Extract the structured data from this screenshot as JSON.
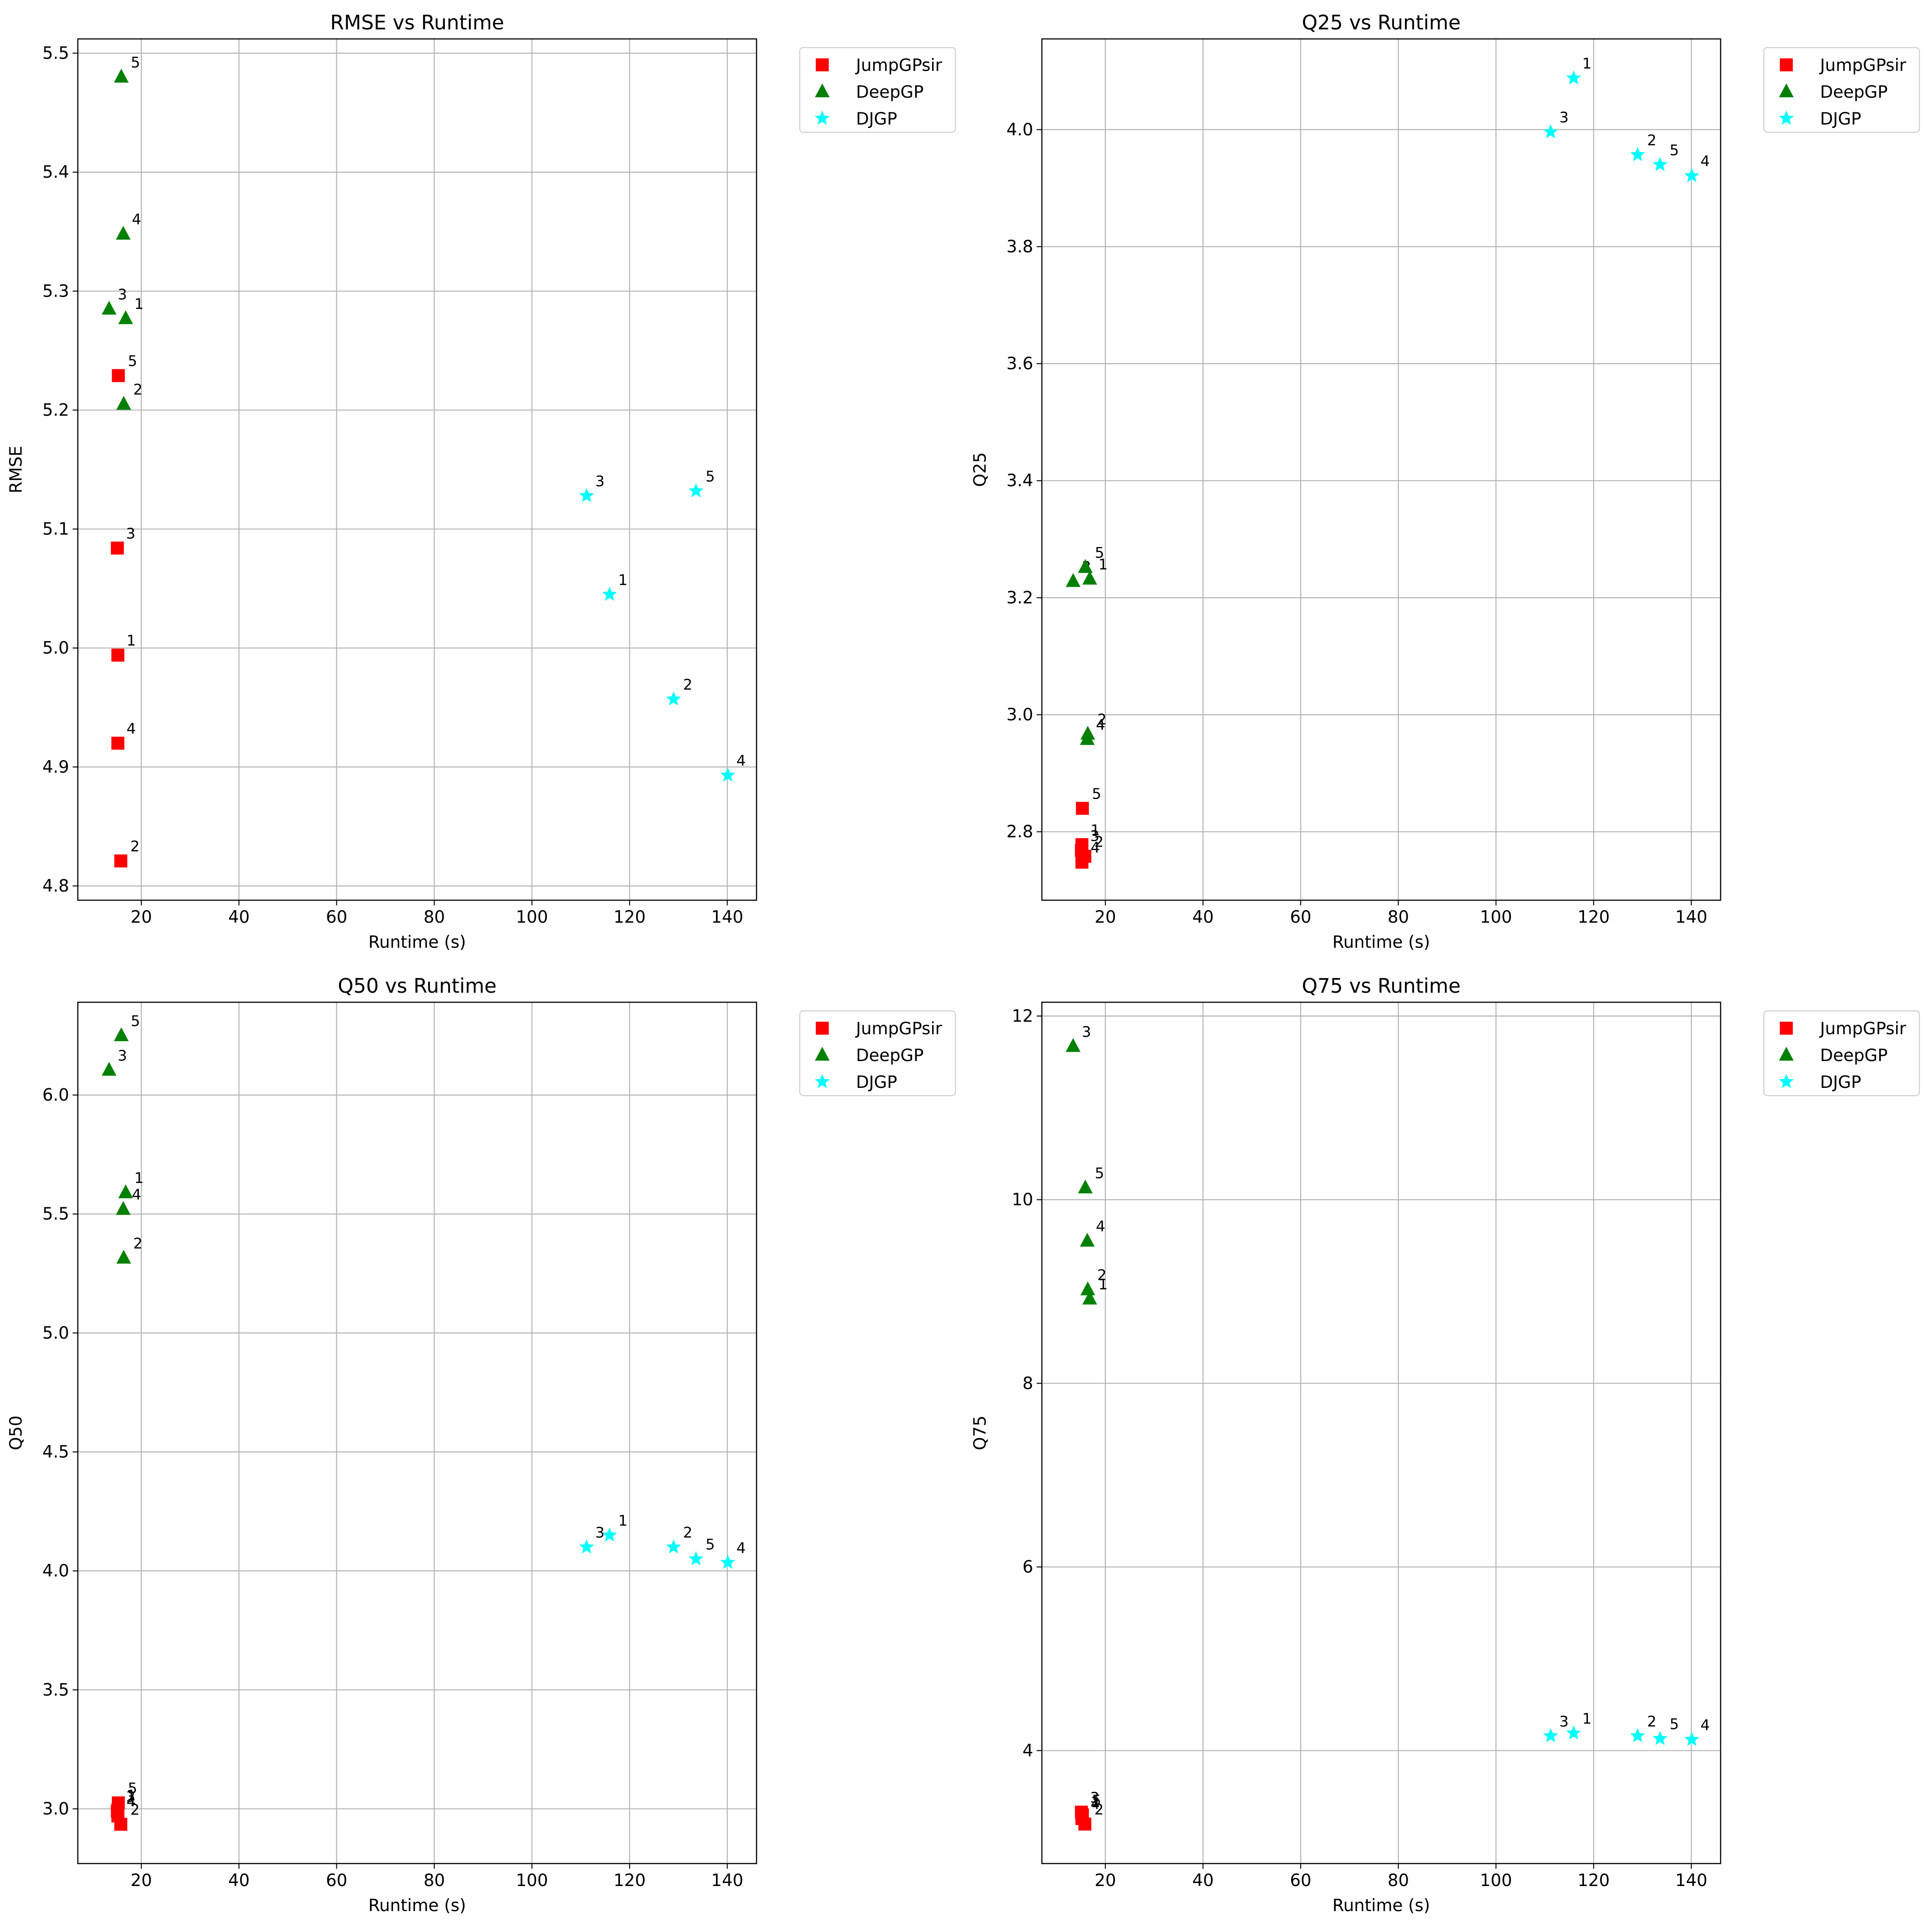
{
  "figure": {
    "title": ""
  },
  "legend_labels": [
    "JumpGPsir",
    "DeepGP",
    "DJGP"
  ],
  "chart_data": [
    {
      "type": "scatter",
      "title": "RMSE vs Runtime",
      "xlabel": "Runtime (s)",
      "ylabel": "RMSE",
      "xlim": [
        7,
        146
      ],
      "ylim": [
        4.788,
        5.512
      ],
      "xticks": [
        20,
        40,
        60,
        80,
        100,
        120,
        140
      ],
      "yticks": [
        4.8,
        4.9,
        5.0,
        5.1,
        5.2,
        5.3,
        5.4,
        5.5
      ],
      "tick_decimals": 1,
      "grid": true,
      "legend": "outside upper right",
      "series": [
        {
          "name": "JumpGPsir",
          "marker": "square",
          "color": "#ff0000",
          "points": [
            {
              "x": 15.2,
              "y": 4.994,
              "label": "1"
            },
            {
              "x": 15.8,
              "y": 4.821,
              "label": "2"
            },
            {
              "x": 15.1,
              "y": 5.084,
              "label": "3"
            },
            {
              "x": 15.2,
              "y": 4.92,
              "label": "4"
            },
            {
              "x": 15.3,
              "y": 5.229,
              "label": "5"
            }
          ]
        },
        {
          "name": "DeepGP",
          "marker": "triangle",
          "color": "#008000",
          "points": [
            {
              "x": 16.8,
              "y": 5.277,
              "label": "1"
            },
            {
              "x": 16.4,
              "y": 5.205,
              "label": "2"
            },
            {
              "x": 13.4,
              "y": 5.285,
              "label": "3"
            },
            {
              "x": 16.3,
              "y": 5.348,
              "label": "4"
            },
            {
              "x": 15.9,
              "y": 5.48,
              "label": "5"
            }
          ]
        },
        {
          "name": "DJGP",
          "marker": "star",
          "color": "#00ffff",
          "points": [
            {
              "x": 115.9,
              "y": 5.045,
              "label": "1"
            },
            {
              "x": 129.0,
              "y": 4.957,
              "label": "2"
            },
            {
              "x": 111.2,
              "y": 5.128,
              "label": "3"
            },
            {
              "x": 140.1,
              "y": 4.893,
              "label": "4"
            },
            {
              "x": 133.6,
              "y": 5.132,
              "label": "5"
            }
          ]
        }
      ]
    },
    {
      "type": "scatter",
      "title": "Q25 vs Runtime",
      "xlabel": "Runtime (s)",
      "ylabel": "Q25",
      "xlim": [
        7,
        146
      ],
      "ylim": [
        2.683,
        4.155
      ],
      "xticks": [
        20,
        40,
        60,
        80,
        100,
        120,
        140
      ],
      "yticks": [
        2.8,
        3.0,
        3.2,
        3.4,
        3.6,
        3.8,
        4.0
      ],
      "tick_decimals": 1,
      "grid": true,
      "legend": "outside upper right",
      "series": [
        {
          "name": "JumpGPsir",
          "marker": "square",
          "color": "#ff0000",
          "points": [
            {
              "x": 15.2,
              "y": 2.778,
              "label": "1"
            },
            {
              "x": 15.8,
              "y": 2.758,
              "label": "2"
            },
            {
              "x": 15.1,
              "y": 2.768,
              "label": "3"
            },
            {
              "x": 15.2,
              "y": 2.748,
              "label": "4"
            },
            {
              "x": 15.3,
              "y": 2.84,
              "label": "5"
            }
          ]
        },
        {
          "name": "DeepGP",
          "marker": "triangle",
          "color": "#008000",
          "points": [
            {
              "x": 16.8,
              "y": 3.232,
              "label": "1"
            },
            {
              "x": 16.4,
              "y": 2.967,
              "label": "2"
            },
            {
              "x": 13.4,
              "y": 3.228,
              "label": "3"
            },
            {
              "x": 16.3,
              "y": 2.958,
              "label": "4"
            },
            {
              "x": 15.9,
              "y": 3.252,
              "label": "5"
            }
          ]
        },
        {
          "name": "DJGP",
          "marker": "star",
          "color": "#00ffff",
          "points": [
            {
              "x": 115.9,
              "y": 4.088,
              "label": "1"
            },
            {
              "x": 129.0,
              "y": 3.957,
              "label": "2"
            },
            {
              "x": 111.2,
              "y": 3.996,
              "label": "3"
            },
            {
              "x": 140.1,
              "y": 3.921,
              "label": "4"
            },
            {
              "x": 133.6,
              "y": 3.94,
              "label": "5"
            }
          ]
        }
      ]
    },
    {
      "type": "scatter",
      "title": "Q50 vs Runtime",
      "xlabel": "Runtime (s)",
      "ylabel": "Q50",
      "xlim": [
        7,
        146
      ],
      "ylim": [
        2.77,
        6.39
      ],
      "xticks": [
        20,
        40,
        60,
        80,
        100,
        120,
        140
      ],
      "yticks": [
        3.0,
        3.5,
        4.0,
        4.5,
        5.0,
        5.5,
        6.0
      ],
      "tick_decimals": 1,
      "grid": true,
      "legend": "outside upper right",
      "series": [
        {
          "name": "JumpGPsir",
          "marker": "square",
          "color": "#ff0000",
          "points": [
            {
              "x": 15.2,
              "y": 2.995,
              "label": "1"
            },
            {
              "x": 15.8,
              "y": 2.935,
              "label": "2"
            },
            {
              "x": 15.1,
              "y": 2.99,
              "label": "3"
            },
            {
              "x": 15.2,
              "y": 2.97,
              "label": "4"
            },
            {
              "x": 15.3,
              "y": 3.025,
              "label": "5"
            }
          ]
        },
        {
          "name": "DeepGP",
          "marker": "triangle",
          "color": "#008000",
          "points": [
            {
              "x": 16.8,
              "y": 5.59,
              "label": "1"
            },
            {
              "x": 16.4,
              "y": 5.315,
              "label": "2"
            },
            {
              "x": 13.4,
              "y": 6.105,
              "label": "3"
            },
            {
              "x": 16.3,
              "y": 5.52,
              "label": "4"
            },
            {
              "x": 15.9,
              "y": 6.25,
              "label": "5"
            }
          ]
        },
        {
          "name": "DJGP",
          "marker": "star",
          "color": "#00ffff",
          "points": [
            {
              "x": 115.9,
              "y": 4.15,
              "label": "1"
            },
            {
              "x": 129.0,
              "y": 4.1,
              "label": "2"
            },
            {
              "x": 111.2,
              "y": 4.1,
              "label": "3"
            },
            {
              "x": 140.1,
              "y": 4.035,
              "label": "4"
            },
            {
              "x": 133.6,
              "y": 4.05,
              "label": "5"
            }
          ]
        }
      ]
    },
    {
      "type": "scatter",
      "title": "Q75 vs Runtime",
      "xlabel": "Runtime (s)",
      "ylabel": "Q75",
      "xlim": [
        7,
        146
      ],
      "ylim": [
        2.77,
        12.15
      ],
      "xticks": [
        20,
        40,
        60,
        80,
        100,
        120,
        140
      ],
      "yticks": [
        4,
        6,
        8,
        10,
        12
      ],
      "tick_decimals": 0,
      "grid": true,
      "legend": "outside upper right",
      "series": [
        {
          "name": "JumpGPsir",
          "marker": "square",
          "color": "#ff0000",
          "points": [
            {
              "x": 15.2,
              "y": 3.28,
              "label": "1"
            },
            {
              "x": 15.8,
              "y": 3.2,
              "label": "2"
            },
            {
              "x": 15.1,
              "y": 3.33,
              "label": "3"
            },
            {
              "x": 15.2,
              "y": 3.26,
              "label": "4"
            },
            {
              "x": 15.3,
              "y": 3.3,
              "label": "5"
            }
          ]
        },
        {
          "name": "DeepGP",
          "marker": "triangle",
          "color": "#008000",
          "points": [
            {
              "x": 16.8,
              "y": 8.92,
              "label": "1"
            },
            {
              "x": 16.4,
              "y": 9.02,
              "label": "2"
            },
            {
              "x": 13.4,
              "y": 11.67,
              "label": "3"
            },
            {
              "x": 16.3,
              "y": 9.55,
              "label": "4"
            },
            {
              "x": 15.9,
              "y": 10.13,
              "label": "5"
            }
          ]
        },
        {
          "name": "DJGP",
          "marker": "star",
          "color": "#00ffff",
          "points": [
            {
              "x": 115.9,
              "y": 4.19,
              "label": "1"
            },
            {
              "x": 129.0,
              "y": 4.16,
              "label": "2"
            },
            {
              "x": 111.2,
              "y": 4.16,
              "label": "3"
            },
            {
              "x": 140.1,
              "y": 4.12,
              "label": "4"
            },
            {
              "x": 133.6,
              "y": 4.13,
              "label": "5"
            }
          ]
        }
      ]
    }
  ]
}
